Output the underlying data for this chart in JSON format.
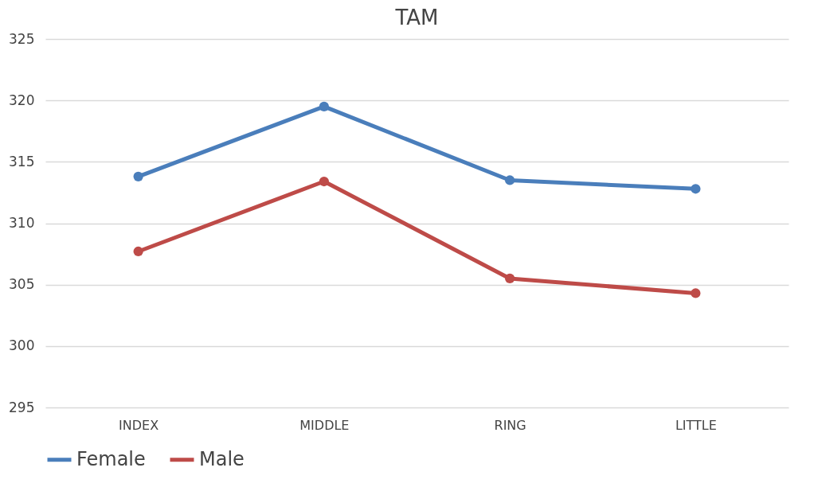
{
  "chart_data": {
    "type": "line",
    "title": "TAM",
    "categories": [
      "INDEX",
      "MIDDLE",
      "RING",
      "LITTLE"
    ],
    "series": [
      {
        "name": "Female",
        "color": "#4a7ebb",
        "values": [
          313.8,
          319.5,
          313.5,
          312.8
        ]
      },
      {
        "name": "Male",
        "color": "#be4b48",
        "values": [
          307.7,
          313.4,
          305.5,
          304.3
        ]
      }
    ],
    "ylim": [
      295,
      325
    ],
    "yticks": [
      295,
      300,
      305,
      310,
      315,
      320,
      325
    ],
    "grid": "y",
    "legend": "bottom",
    "marker": "circle",
    "line_style": "solid"
  }
}
